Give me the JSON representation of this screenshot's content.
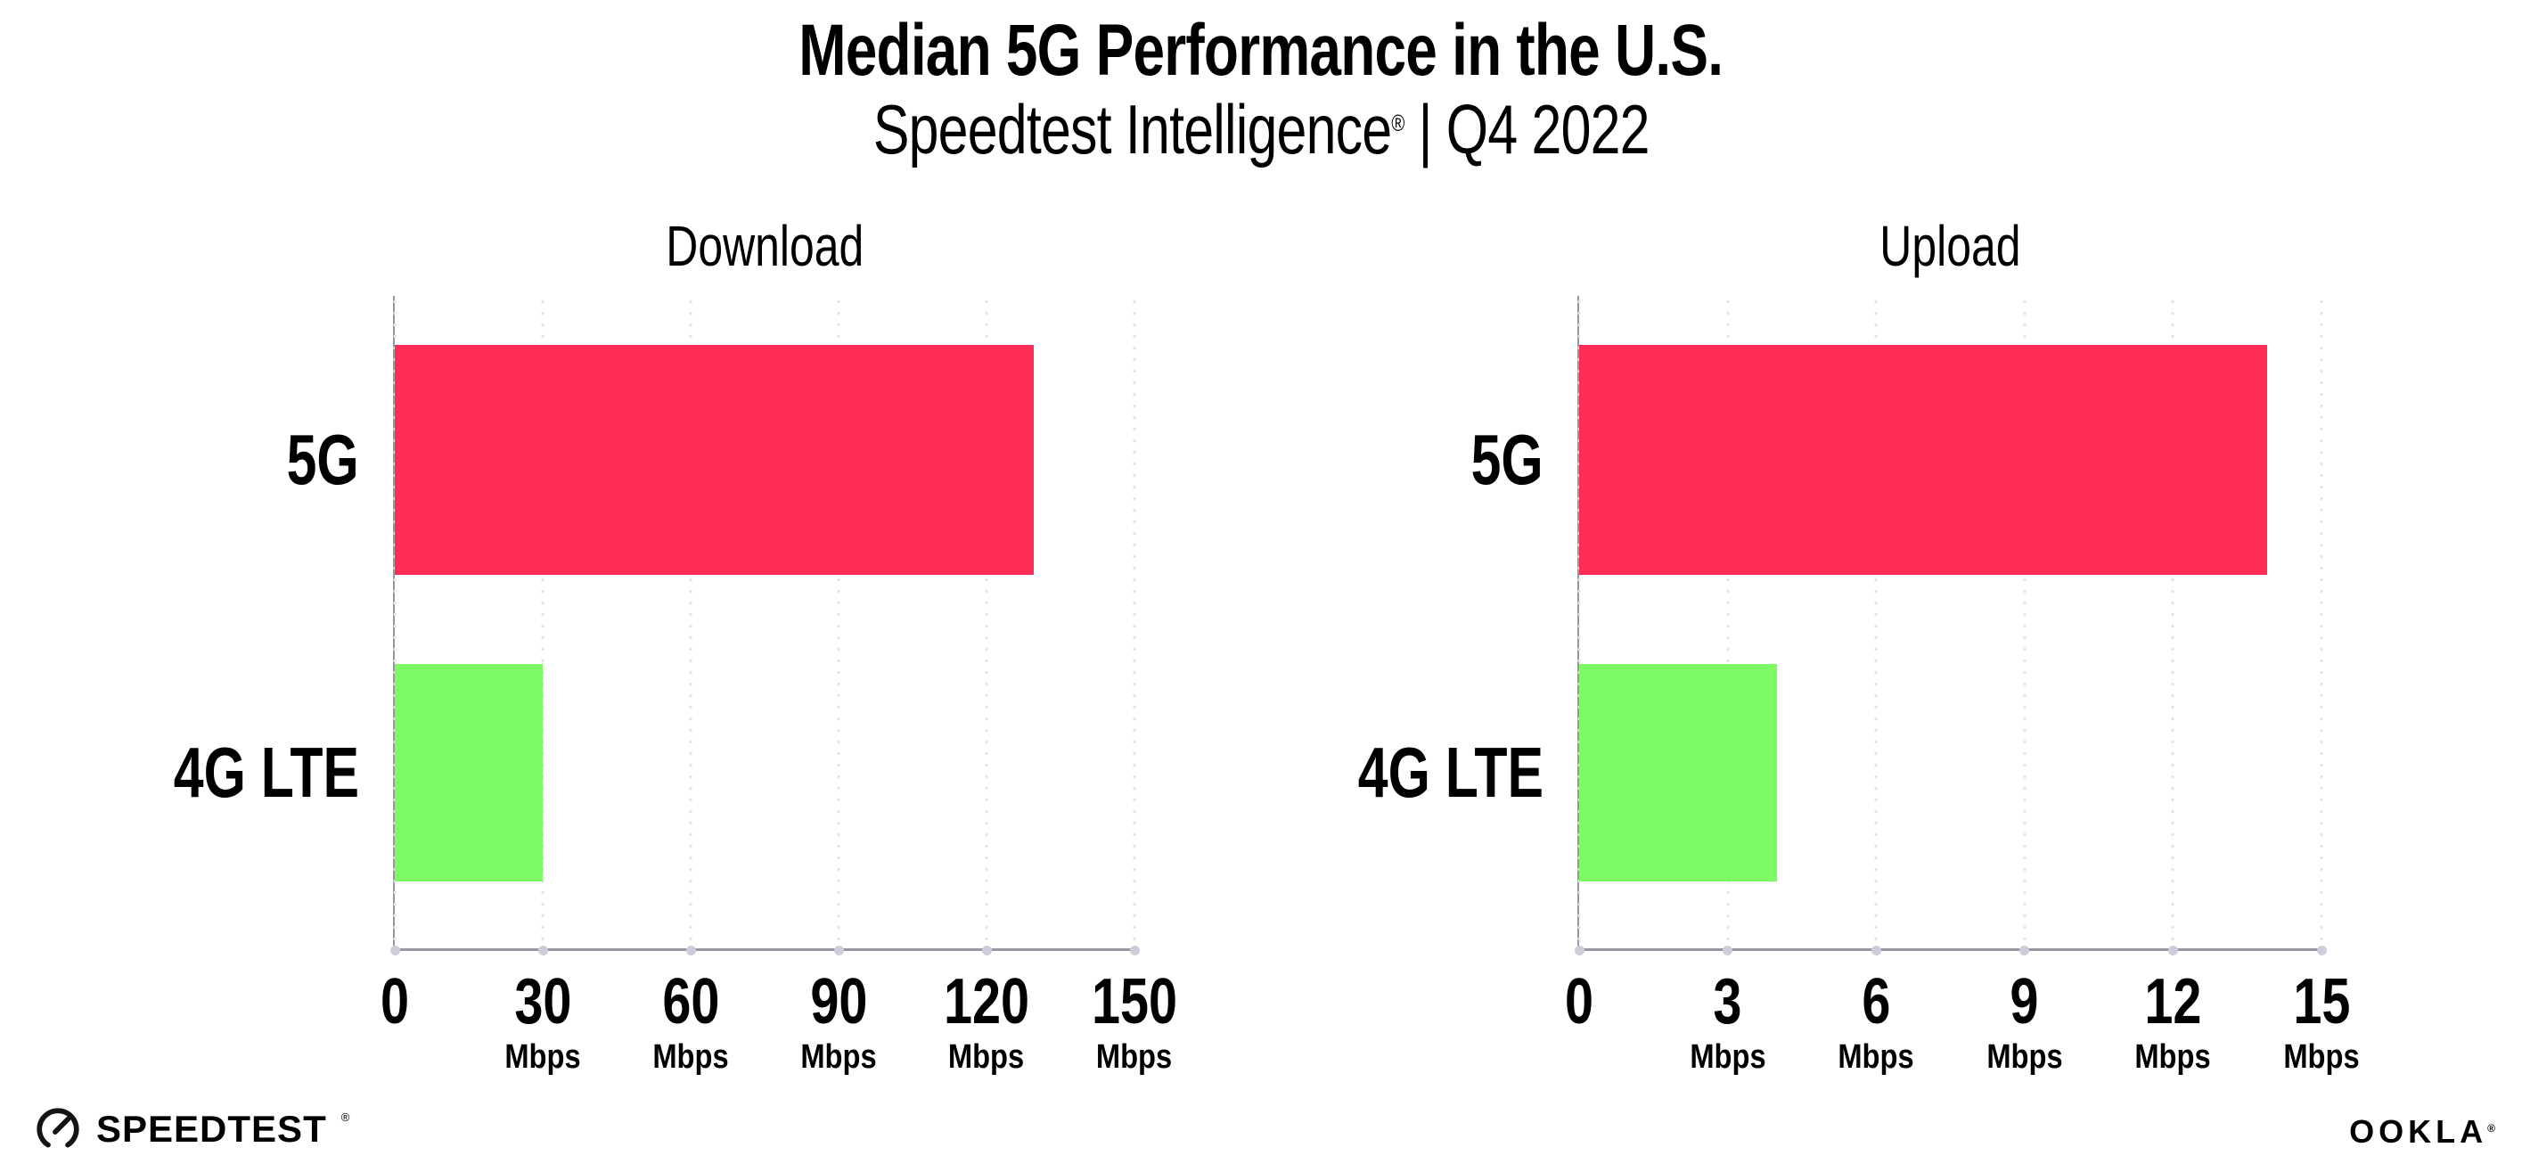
{
  "header": {
    "title": "Median 5G Performance in the U.S.",
    "subtitle_brand": "Speedtest Intelligence",
    "subtitle_reg": "®",
    "subtitle_rest": " | Q4 2022"
  },
  "chart_data": [
    {
      "type": "bar",
      "orientation": "horizontal",
      "title": "Download",
      "categories": [
        "5G",
        "4G LTE"
      ],
      "values": [
        129.5,
        30
      ],
      "unit": "Mbps",
      "xlim": [
        0,
        150
      ],
      "xticks": [
        0,
        30,
        60,
        90,
        120,
        150
      ],
      "bar_colors": [
        "#FD2D55",
        "#7DFA64"
      ],
      "grid": "vertical-dotted",
      "legend": "none"
    },
    {
      "type": "bar",
      "orientation": "horizontal",
      "title": "Upload",
      "categories": [
        "5G",
        "4G LTE"
      ],
      "values": [
        13.9,
        4
      ],
      "unit": "Mbps",
      "xlim": [
        0,
        15
      ],
      "xticks": [
        0,
        3,
        6,
        9,
        12,
        15
      ],
      "bar_colors": [
        "#FD2D55",
        "#7DFA64"
      ],
      "grid": "vertical-dotted",
      "legend": "none"
    }
  ],
  "footer": {
    "speedtest_label": "SPEEDTEST",
    "speedtest_reg": "®",
    "ookla_label": "OOKLA",
    "ookla_reg": "®"
  },
  "colors": {
    "bar_5g": "#FD2D55",
    "bar_4g_lte": "#7DFA64",
    "gridline": "#E2E2EE",
    "axis_line": "#97979F",
    "tick_dot": "#CDCDDA",
    "text": "#000000",
    "background": "#FFFFFF"
  }
}
